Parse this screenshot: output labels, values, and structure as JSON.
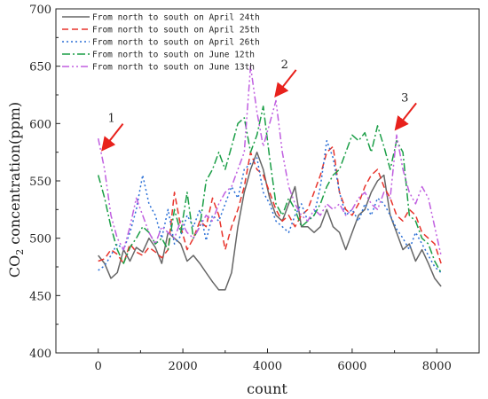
{
  "chart_data": {
    "type": "line",
    "xlabel": "count",
    "ylabel_main": "CO",
    "ylabel_sub": "2",
    "ylabel_rest": " concentration(ppm)",
    "xlim": [
      -1000,
      9000
    ],
    "ylim": [
      400,
      700
    ],
    "xticks": [
      0,
      2000,
      4000,
      6000,
      8000
    ],
    "yticks": [
      400,
      450,
      500,
      550,
      600,
      650,
      700
    ],
    "legend_position": "top-left",
    "series": [
      {
        "name": "From north to south on April 24th",
        "color": "#666666",
        "dash": "",
        "x": [
          0,
          150,
          300,
          450,
          600,
          750,
          900,
          1050,
          1200,
          1350,
          1500,
          1650,
          1800,
          1950,
          2100,
          2250,
          2400,
          2550,
          2700,
          2850,
          3000,
          3150,
          3300,
          3450,
          3600,
          3750,
          3900,
          4050,
          4200,
          4350,
          4500,
          4650,
          4800,
          4950,
          5100,
          5250,
          5400,
          5550,
          5700,
          5850,
          6000,
          6150,
          6300,
          6450,
          6600,
          6750,
          6900,
          7050,
          7200,
          7350,
          7500,
          7650,
          7800,
          7950,
          8100
        ],
        "y": [
          485,
          478,
          465,
          470,
          490,
          480,
          492,
          488,
          500,
          492,
          478,
          505,
          500,
          495,
          480,
          485,
          478,
          470,
          462,
          455,
          455,
          470,
          510,
          540,
          560,
          575,
          560,
          535,
          520,
          515,
          530,
          545,
          510,
          510,
          505,
          510,
          525,
          510,
          505,
          490,
          505,
          520,
          525,
          540,
          550,
          555,
          520,
          505,
          490,
          495,
          480,
          490,
          478,
          465,
          458
        ]
      },
      {
        "name": "From north to south on April 25th",
        "color": "#e8342c",
        "dash": "7,4",
        "x": [
          0,
          150,
          300,
          450,
          600,
          750,
          900,
          1050,
          1200,
          1350,
          1500,
          1650,
          1800,
          1950,
          2100,
          2250,
          2400,
          2550,
          2700,
          2850,
          3000,
          3150,
          3300,
          3450,
          3600,
          3750,
          3900,
          4050,
          4200,
          4350,
          4500,
          4650,
          4800,
          4950,
          5100,
          5250,
          5400,
          5550,
          5700,
          5850,
          6000,
          6150,
          6300,
          6450,
          6600,
          6750,
          6900,
          7050,
          7200,
          7350,
          7500,
          7650,
          7800,
          7950,
          8100
        ],
        "y": [
          480,
          482,
          490,
          486,
          478,
          495,
          488,
          485,
          492,
          488,
          483,
          490,
          540,
          510,
          490,
          500,
          515,
          510,
          535,
          520,
          490,
          510,
          525,
          545,
          575,
          560,
          555,
          540,
          525,
          515,
          520,
          510,
          520,
          525,
          540,
          555,
          575,
          580,
          540,
          525,
          520,
          530,
          545,
          555,
          560,
          545,
          535,
          520,
          515,
          525,
          520,
          505,
          500,
          495,
          478
        ]
      },
      {
        "name": "From north to south on April 26th",
        "color": "#2a6fd6",
        "dash": "2,3",
        "x": [
          0,
          150,
          300,
          450,
          600,
          750,
          900,
          1050,
          1200,
          1350,
          1500,
          1650,
          1800,
          1950,
          2100,
          2250,
          2400,
          2550,
          2700,
          2850,
          3000,
          3150,
          3300,
          3450,
          3600,
          3750,
          3900,
          4050,
          4200,
          4350,
          4500,
          4650,
          4800,
          4950,
          5100,
          5250,
          5400,
          5550,
          5700,
          5850,
          6000,
          6150,
          6300,
          6450,
          6600,
          6750,
          6900,
          7050,
          7200,
          7350,
          7500,
          7650,
          7800,
          7950,
          8100
        ],
        "y": [
          472,
          476,
          485,
          495,
          490,
          505,
          525,
          555,
          530,
          520,
          500,
          525,
          495,
          502,
          520,
          510,
          525,
          498,
          520,
          515,
          530,
          545,
          535,
          560,
          565,
          570,
          540,
          530,
          515,
          510,
          505,
          520,
          530,
          515,
          520,
          545,
          585,
          570,
          540,
          520,
          525,
          515,
          530,
          520,
          535,
          530,
          520,
          508,
          500,
          490,
          505,
          495,
          485,
          475,
          470
        ]
      },
      {
        "name": "From north to south on June 12th",
        "color": "#1a9e46",
        "dash": "9,3,2,3",
        "x": [
          0,
          150,
          300,
          450,
          600,
          750,
          900,
          1050,
          1200,
          1350,
          1500,
          1650,
          1800,
          1950,
          2100,
          2250,
          2400,
          2550,
          2700,
          2850,
          3000,
          3150,
          3300,
          3450,
          3600,
          3750,
          3900,
          4050,
          4200,
          4350,
          4500,
          4650,
          4800,
          4950,
          5100,
          5250,
          5400,
          5550,
          5700,
          5850,
          6000,
          6150,
          6300,
          6450,
          6600,
          6750,
          6900,
          7050,
          7200,
          7350,
          7500,
          7650,
          7800,
          7950,
          8100
        ],
        "y": [
          555,
          535,
          510,
          490,
          478,
          492,
          500,
          510,
          505,
          495,
          500,
          490,
          525,
          505,
          540,
          500,
          510,
          550,
          560,
          575,
          560,
          580,
          600,
          605,
          575,
          590,
          615,
          570,
          530,
          520,
          535,
          525,
          510,
          515,
          520,
          530,
          545,
          555,
          560,
          575,
          590,
          585,
          592,
          575,
          598,
          580,
          560,
          585,
          575,
          520,
          515,
          500,
          495,
          480,
          470
        ]
      },
      {
        "name": "From north to south on June 13th",
        "color": "#c05fe0",
        "dash": "8,3,2,3,2,3",
        "x": [
          0,
          150,
          300,
          450,
          600,
          750,
          900,
          1050,
          1200,
          1350,
          1500,
          1650,
          1800,
          1950,
          2100,
          2250,
          2400,
          2550,
          2700,
          2850,
          3000,
          3150,
          3300,
          3450,
          3600,
          3750,
          3900,
          4050,
          4200,
          4350,
          4500,
          4650,
          4800,
          4950,
          5100,
          5250,
          5400,
          5550,
          5700,
          5850,
          6000,
          6150,
          6300,
          6450,
          6600,
          6750,
          6900,
          7050,
          7200,
          7350,
          7500,
          7650,
          7800,
          7950,
          8100
        ],
        "y": [
          587,
          560,
          520,
          500,
          490,
          510,
          535,
          520,
          505,
          495,
          510,
          505,
          500,
          515,
          505,
          500,
          510,
          520,
          515,
          530,
          540,
          545,
          560,
          575,
          650,
          610,
          580,
          600,
          620,
          575,
          545,
          530,
          520,
          515,
          525,
          520,
          530,
          525,
          530,
          520,
          525,
          535,
          540,
          530,
          525,
          540,
          535,
          590,
          560,
          540,
          530,
          545,
          535,
          510,
          485
        ]
      }
    ],
    "annotations": [
      {
        "label": "1",
        "x": 60,
        "y": 575
      },
      {
        "label": "2",
        "x": 4150,
        "y": 622
      },
      {
        "label": "3",
        "x": 6990,
        "y": 593
      }
    ]
  }
}
